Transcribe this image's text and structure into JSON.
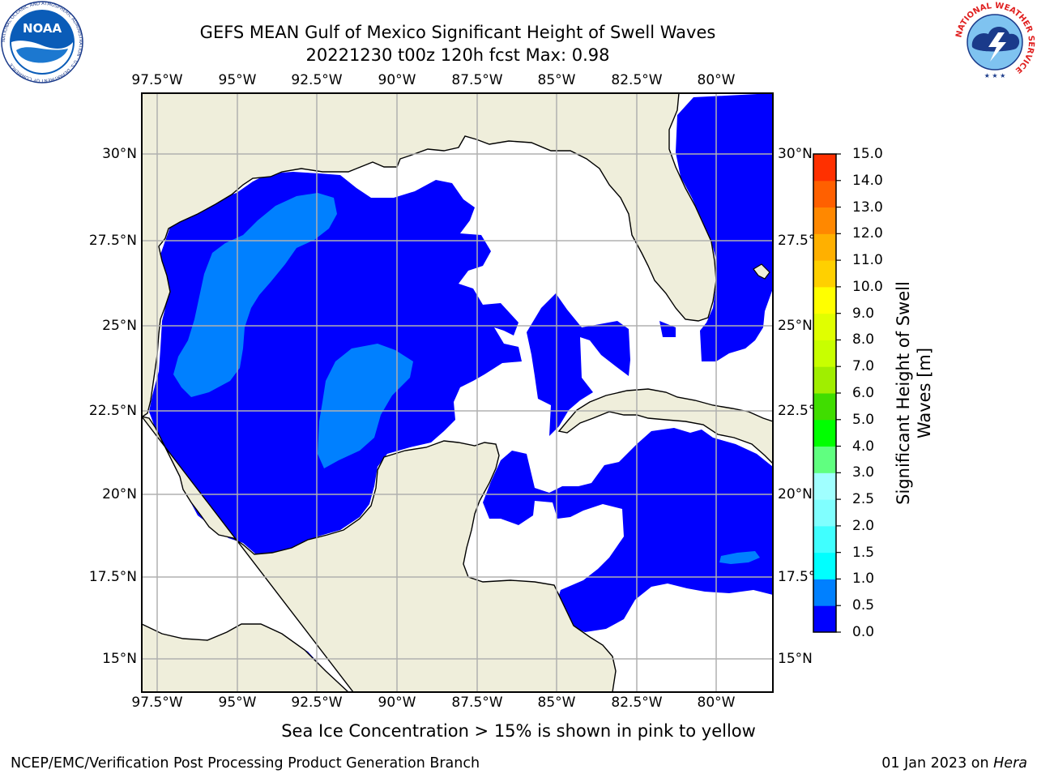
{
  "header": {
    "title_line1": "GEFS MEAN Gulf of Mexico Significant Height of Swell Waves",
    "title_line2": "20221230 t00z 120h fcst   Max: 0.98"
  },
  "logos": {
    "noaa": {
      "text": "NOAA",
      "ring_text": "NATIONAL OCEANIC AND ATMOSPHERIC ADMINISTRATION · U.S. DEPARTMENT OF COMMERCE"
    },
    "nws": {
      "ring_text": "NATIONAL WEATHER SERVICE"
    }
  },
  "map": {
    "lon_labels": [
      "97.5°W",
      "95°W",
      "92.5°W",
      "90°W",
      "87.5°W",
      "85°W",
      "82.5°W",
      "80°W"
    ],
    "lat_labels": [
      "30°N",
      "27.5°N",
      "25°N",
      "22.5°N",
      "20°N",
      "17.5°N",
      "15°N"
    ],
    "lon_range": [
      -98.5,
      -78.7
    ],
    "lat_range": [
      14.0,
      31.8
    ],
    "colors": {
      "land": "#efeedb",
      "ocean_low": "#0000ff",
      "ocean_mid": "#0080ff",
      "no_data": "#ffffff",
      "grid": "#b0b0b0",
      "coast": "#000000"
    }
  },
  "colorbar": {
    "levels": [
      "0.0",
      "0.5",
      "1.0",
      "1.5",
      "2.0",
      "2.5",
      "3.0",
      "4.0",
      "5.0",
      "6.0",
      "7.0",
      "8.0",
      "9.0",
      "10.0",
      "11.0",
      "12.0",
      "13.0",
      "14.0",
      "15.0"
    ],
    "labels": [
      "0.0",
      "0.5",
      "1.0",
      "1.5",
      "2.0",
      "2.5",
      "3.0",
      "4.0",
      "5.0",
      "6.0",
      "7.0",
      "8.0",
      "9.0",
      "10.0",
      "11.0",
      "12.0",
      "13.0",
      "14.0",
      "15.0"
    ],
    "colors": [
      "#0000ff",
      "#0080ff",
      "#00ffff",
      "#40ffff",
      "#80ffff",
      "#a0ffff",
      "#60ff80",
      "#00ff00",
      "#40dd00",
      "#a0ee00",
      "#c8ff00",
      "#e0ff00",
      "#ffff00",
      "#ffd000",
      "#ffb000",
      "#ff8800",
      "#ff6000",
      "#ff3000",
      "#ff0000"
    ],
    "title_line1": "Significant Height of Swell",
    "title_line2": "Waves [m]"
  },
  "notes": {
    "sea_ice": "Sea Ice Concentration > 15% is shown in pink to yellow"
  },
  "footer": {
    "left": "NCEP/EMC/Verification Post Processing Product Generation Branch",
    "date": "01 Jan 2023 on ",
    "machine": "Hera"
  }
}
